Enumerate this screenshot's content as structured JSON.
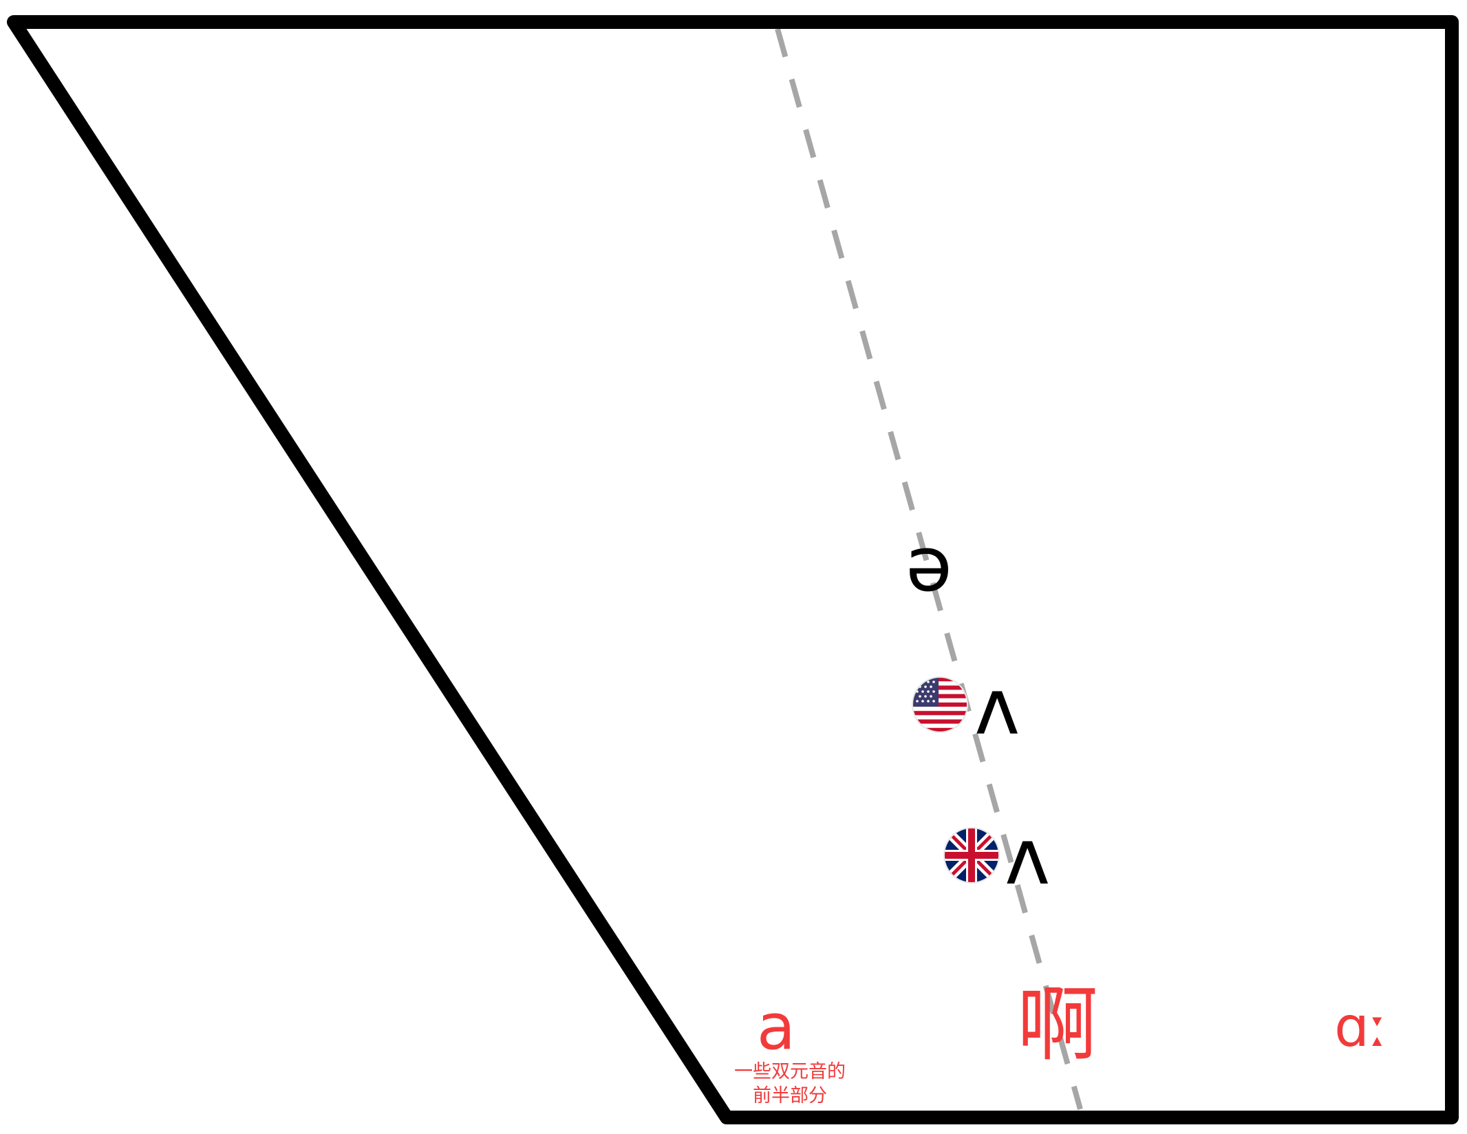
{
  "colors": {
    "outline": "#000000",
    "guide": "#a6a6a6",
    "accent": "#f23a3a",
    "text": "#000000"
  },
  "vowels": {
    "schwa": "ə",
    "us_wedge": "ʌ",
    "uk_wedge": "ʌ",
    "front_a": "a",
    "chinese_a": "啊",
    "back_a_long": "ɑː"
  },
  "note": {
    "line1": "一些双元音的",
    "line2": "前半部分"
  },
  "flags": {
    "us": "us-flag-icon",
    "uk": "uk-flag-icon"
  }
}
